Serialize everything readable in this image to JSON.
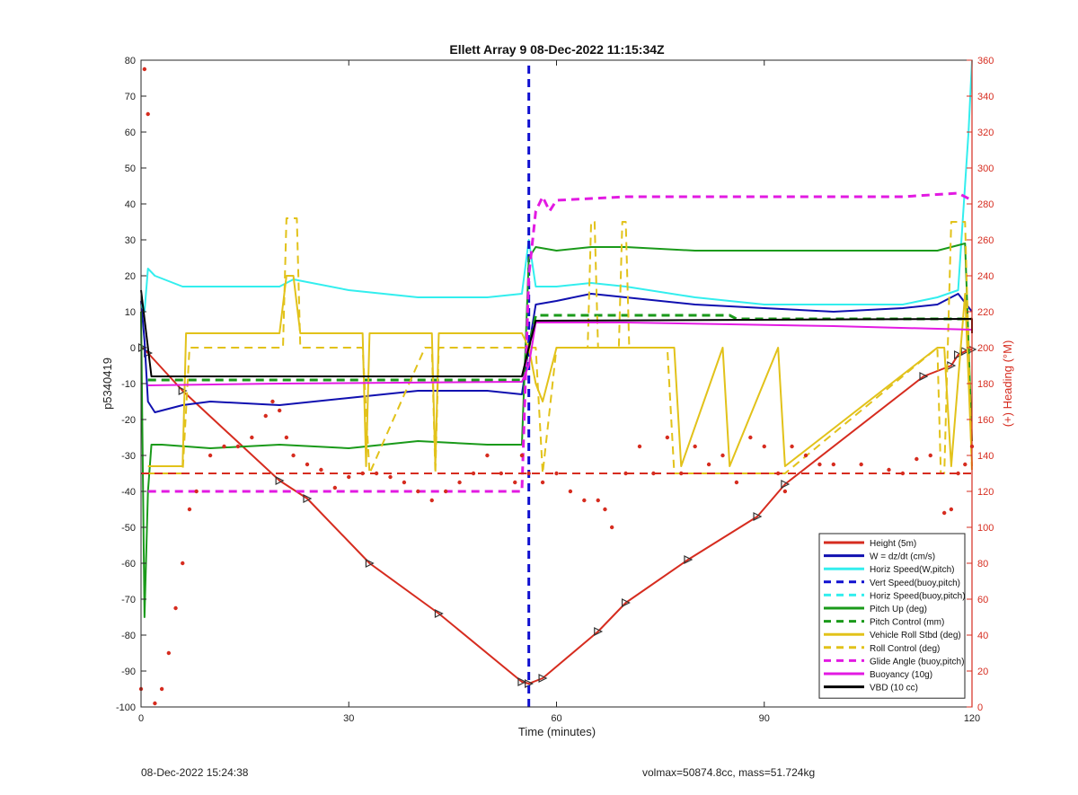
{
  "chart_data": {
    "type": "line",
    "title": "Ellett Array 9 08-Dec-2022 11:15:34Z",
    "xlabel": "Time (minutes)",
    "ylabel": "p5340419",
    "ylabel_right": "(+) Heading (°M)",
    "xlim": [
      0,
      120
    ],
    "ylim": [
      -100,
      80
    ],
    "ylim_right": [
      0,
      360
    ],
    "xticks": [
      "0",
      "30",
      "60",
      "90",
      "120"
    ],
    "yticks": [
      "80",
      "70",
      "60",
      "50",
      "40",
      "30",
      "20",
      "10",
      "0",
      "-10",
      "-20",
      "-30",
      "-40",
      "-50",
      "-60",
      "-70",
      "-80",
      "-90",
      "-100"
    ],
    "yticks_right": [
      "360",
      "340",
      "320",
      "300",
      "280",
      "260",
      "240",
      "220",
      "200",
      "180",
      "160",
      "140",
      "120",
      "100",
      "80",
      "60",
      "40",
      "20",
      "0"
    ],
    "vline_x": 56,
    "hline_heading": 130,
    "series": [
      {
        "name": "Height (5m)",
        "color": "#d62c1f",
        "style": "solid",
        "width": 2,
        "markers": true,
        "x": [
          0.2,
          1,
          6,
          20,
          24,
          33,
          43,
          55,
          56,
          58,
          66,
          70,
          79,
          89,
          93,
          113,
          117,
          118,
          119,
          120
        ],
        "y": [
          0,
          -1.5,
          -12,
          -37,
          -42,
          -60,
          -74,
          -93,
          -93.5,
          -92,
          -79,
          -71,
          -59,
          -47,
          -38,
          -8,
          -5,
          -2,
          -1,
          -0.5
        ]
      },
      {
        "name": "W = dz/dt (cm/s)",
        "color": "#1010b0",
        "style": "solid",
        "width": 2,
        "x": [
          0,
          0.5,
          1,
          2,
          6,
          10,
          20,
          30,
          40,
          45,
          50,
          55,
          56,
          57,
          60,
          65,
          70,
          80,
          90,
          100,
          110,
          115,
          118,
          120
        ],
        "y": [
          13,
          2,
          -15,
          -18,
          -16,
          -15,
          -16,
          -14,
          -12,
          -12,
          -12,
          -13,
          0,
          12,
          13,
          15,
          14,
          12,
          11,
          10,
          11,
          12,
          15,
          10
        ]
      },
      {
        "name": "Horiz Speed(W,pitch)",
        "color": "#33eeee",
        "style": "solid",
        "width": 2,
        "x": [
          0,
          0.5,
          1,
          2,
          6,
          15,
          20,
          22,
          30,
          40,
          50,
          55,
          56,
          57,
          60,
          65,
          70,
          80,
          90,
          100,
          110,
          115,
          118,
          119.5,
          120
        ],
        "y": [
          12,
          10,
          22,
          20,
          17,
          17,
          17,
          19,
          16,
          14,
          14,
          15,
          30,
          17,
          17,
          18,
          17,
          14,
          12,
          12,
          12,
          14,
          16,
          60,
          80
        ]
      },
      {
        "name": "Vert Speed(buoy,pitch)",
        "color": "#1010d0",
        "style": "dashed",
        "width": 3,
        "x": [
          56,
          56
        ],
        "y": [
          -100,
          80
        ]
      },
      {
        "name": "Horiz Speed(buoy,pitch)",
        "color": "#33eeee",
        "style": "dashed",
        "width": 2,
        "x": [
          0,
          0.5
        ],
        "y": [
          12,
          10
        ]
      },
      {
        "name": "Pitch Up (deg)",
        "color": "#1a9a1a",
        "style": "solid",
        "width": 2,
        "x": [
          0,
          0.5,
          1,
          1.5,
          3,
          10,
          20,
          30,
          40,
          50,
          55,
          56,
          57,
          60,
          65,
          70,
          80,
          90,
          100,
          110,
          115,
          117,
          119,
          120
        ],
        "y": [
          10,
          -75,
          -40,
          -27,
          -27,
          -28,
          -27,
          -28,
          -26,
          -27,
          -27,
          25,
          28,
          27,
          28,
          28,
          27,
          27,
          27,
          27,
          27,
          28,
          29,
          -26
        ]
      },
      {
        "name": "Pitch Control (mm)",
        "color": "#1a9a1a",
        "style": "dashed",
        "width": 3,
        "x": [
          1,
          55,
          56,
          57,
          85,
          86,
          120
        ],
        "y": [
          -9,
          -9,
          0,
          9,
          9,
          8,
          8
        ]
      },
      {
        "name": "Vehicle Roll Stbd (deg)",
        "color": "#e2c21a",
        "style": "solid",
        "width": 2,
        "x": [
          1,
          1.5,
          6,
          6.5,
          20,
          21,
          22,
          23,
          32,
          32.5,
          33,
          40,
          41,
          42,
          42.5,
          43,
          50,
          55,
          56,
          57,
          58,
          60,
          65,
          70,
          77,
          78,
          84,
          85,
          92,
          93,
          115,
          116,
          117,
          119,
          120
        ],
        "y": [
          -33,
          -33,
          -33,
          4,
          4,
          20,
          20,
          4,
          4,
          -33,
          4,
          4,
          4,
          4,
          -33,
          4,
          4,
          4,
          0,
          -10,
          -15,
          0,
          0,
          0,
          0,
          -33,
          0,
          -33,
          0,
          -33,
          0,
          0,
          -33,
          15,
          -33
        ]
      },
      {
        "name": "Roll Control (deg)",
        "color": "#e2c21a",
        "style": "dashed",
        "width": 2,
        "x": [
          1,
          6,
          7,
          20.5,
          21,
          22.5,
          23,
          32,
          33,
          41,
          42,
          42.5,
          43,
          55,
          56,
          57,
          58,
          60,
          64.5,
          65,
          65.5,
          66,
          69,
          69.5,
          70,
          70.5,
          76,
          77,
          84,
          85,
          92,
          93,
          115,
          115.5,
          116,
          117,
          119,
          120
        ],
        "y": [
          -35,
          -35,
          0,
          0,
          36,
          36,
          0,
          0,
          -35,
          0,
          0,
          -35,
          0,
          0,
          0,
          0,
          -35,
          0,
          0,
          35,
          35,
          0,
          0,
          35,
          35,
          0,
          0,
          -35,
          -35,
          -35,
          -35,
          -35,
          0,
          -35,
          -35,
          35,
          35,
          -35
        ]
      },
      {
        "name": "Glide Angle (buoy,pitch)",
        "color": "#e21ae2",
        "style": "dashed",
        "width": 3,
        "x": [
          1,
          10,
          20,
          30,
          40,
          50,
          55,
          56,
          57,
          58,
          59,
          60,
          70,
          80,
          90,
          100,
          110,
          118,
          120
        ],
        "y": [
          -40,
          -40,
          -40,
          -40,
          -40,
          -40,
          -40,
          20,
          38,
          42,
          38,
          41,
          42,
          42,
          42,
          42,
          42,
          43,
          41
        ]
      },
      {
        "name": "Buoyancy (10g)",
        "color": "#e21ae2",
        "style": "solid",
        "width": 2,
        "x": [
          1,
          20,
          55,
          56,
          57,
          70,
          100,
          120
        ],
        "y": [
          -10.5,
          -10,
          -9.5,
          -5,
          7,
          7,
          6,
          5
        ]
      },
      {
        "name": "VBD (10 cc)",
        "color": "#000000",
        "style": "solid",
        "width": 2,
        "x": [
          0,
          0.5,
          1,
          1.5,
          55,
          56,
          57,
          120,
          120
        ],
        "y": [
          16,
          8,
          0,
          -8,
          -8,
          0,
          7.5,
          8,
          4
        ]
      },
      {
        "name": "",
        "color": "#d62c1f",
        "style": "dashed",
        "width": 2,
        "axis": "right",
        "x": [
          0,
          120
        ],
        "y": [
          130,
          130
        ]
      },
      {
        "name": "",
        "color": "#d62c1f",
        "style": "dots",
        "width": 0,
        "axis": "right",
        "x": [
          0,
          0.5,
          1,
          2,
          3,
          4,
          5,
          6,
          7,
          8,
          10,
          12,
          14,
          16,
          18,
          19,
          20,
          21,
          22,
          24,
          26,
          28,
          30,
          32,
          34,
          36,
          38,
          40,
          42,
          44,
          46,
          48,
          50,
          52,
          54,
          55,
          56,
          58,
          60,
          62,
          64,
          66,
          67,
          68,
          70,
          72,
          74,
          76,
          78,
          80,
          82,
          84,
          86,
          88,
          90,
          92,
          93,
          94,
          96,
          98,
          100,
          104,
          108,
          110,
          112,
          114,
          116,
          117,
          118,
          119,
          120
        ],
        "y": [
          10,
          355,
          330,
          2,
          10,
          30,
          55,
          80,
          110,
          120,
          140,
          145,
          145,
          150,
          162,
          170,
          165,
          150,
          140,
          135,
          132,
          122,
          128,
          130,
          130,
          128,
          125,
          120,
          115,
          120,
          125,
          130,
          140,
          130,
          125,
          140,
          130,
          125,
          130,
          120,
          115,
          115,
          110,
          100,
          130,
          145,
          130,
          150,
          130,
          145,
          135,
          140,
          125,
          150,
          145,
          130,
          120,
          145,
          140,
          135,
          135,
          135,
          132,
          130,
          138,
          140,
          108,
          110,
          130,
          135,
          145
        ]
      }
    ]
  },
  "footer": {
    "left": "08-Dec-2022 15:24:38",
    "right": "volmax=50874.8cc, mass=51.724kg"
  }
}
